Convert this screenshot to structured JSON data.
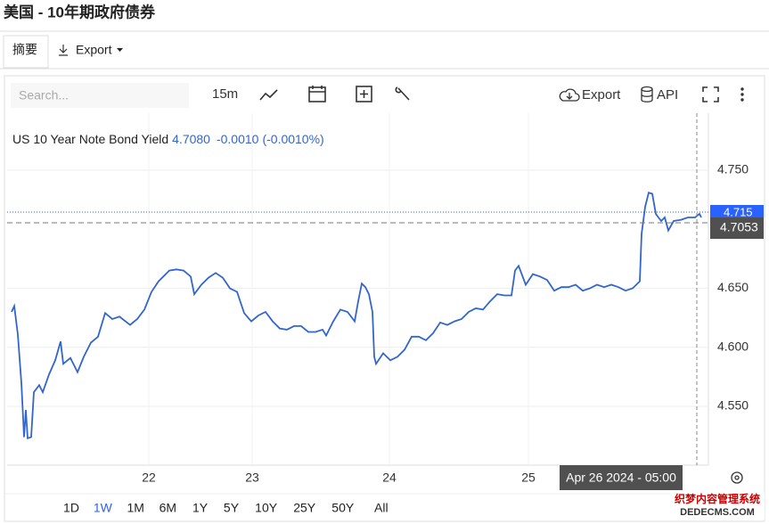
{
  "header": {
    "title": "美国 - 10年期政府债券"
  },
  "tabs": [
    "摘要",
    "Export"
  ],
  "toolbar": {
    "search": "Search...",
    "interval": "15m",
    "export": "Export",
    "api": "API"
  },
  "legend": {
    "value": "4.7080",
    "change": "-0.0010",
    "percent": "(-0.0010%)"
  },
  "overlay": {
    "last_price": "4.715",
    "crosshair_price": "4.7053",
    "crosshair_time": "Apr 26 2024 - 05:00"
  },
  "ranges": [
    "1D",
    "1W",
    "1M",
    "6M",
    "1Y",
    "5Y",
    "10Y",
    "25Y",
    "50Y",
    "All"
  ],
  "active_range": "1W",
  "watermark": [
    "织梦内容管理系统",
    "DEDECMS.COM"
  ],
  "chart_data": {
    "type": "line",
    "series": [
      {
        "name": "US 10 Year Note Bond Yield",
        "color": "#3366cc",
        "x": [
          5,
          8,
          12,
          16,
          19,
          21,
          23,
          27,
          30,
          36,
          40,
          47,
          54,
          60,
          63,
          71,
          79,
          86,
          94,
          102,
          110,
          118,
          126,
          138,
          146,
          154,
          162,
          170,
          182,
          190,
          198,
          206,
          210,
          218,
          226,
          234,
          242,
          250,
          258,
          266,
          274,
          282,
          290,
          298,
          306,
          314,
          322,
          330,
          338,
          346,
          354,
          358,
          366,
          374,
          382,
          390,
          394,
          398,
          402,
          406,
          410,
          412,
          414,
          422,
          430,
          438,
          446,
          454,
          462,
          470,
          478,
          486,
          494,
          502,
          510,
          518,
          526,
          534,
          542,
          550,
          558,
          566,
          570,
          574,
          582,
          590,
          598,
          606,
          614,
          622,
          630,
          638,
          646,
          654,
          662,
          670,
          678,
          686,
          694,
          702,
          710,
          712,
          716,
          720,
          724,
          728,
          734,
          738,
          742,
          748,
          756,
          764,
          772,
          777,
          779
        ],
        "values": [
          4.63,
          4.635,
          4.611,
          4.57,
          4.524,
          4.547,
          4.523,
          4.524,
          4.562,
          4.568,
          4.562,
          4.577,
          4.589,
          4.605,
          4.586,
          4.591,
          4.579,
          4.592,
          4.604,
          4.609,
          4.629,
          4.624,
          4.626,
          4.619,
          4.624,
          4.632,
          4.647,
          4.656,
          4.665,
          4.666,
          4.665,
          4.66,
          4.645,
          4.653,
          4.659,
          4.663,
          4.659,
          4.65,
          4.647,
          4.629,
          4.622,
          4.627,
          4.63,
          4.622,
          4.616,
          4.615,
          4.618,
          4.618,
          4.613,
          4.613,
          4.615,
          4.61,
          4.622,
          4.632,
          4.63,
          4.622,
          4.639,
          4.654,
          4.651,
          4.645,
          4.63,
          4.592,
          4.586,
          4.595,
          4.589,
          4.592,
          4.598,
          4.609,
          4.609,
          4.606,
          4.612,
          4.621,
          4.619,
          4.622,
          4.624,
          4.63,
          4.633,
          4.632,
          4.639,
          4.645,
          4.644,
          4.644,
          4.665,
          4.669,
          4.653,
          4.662,
          4.66,
          4.657,
          4.648,
          4.651,
          4.651,
          4.653,
          4.648,
          4.65,
          4.653,
          4.651,
          4.653,
          4.651,
          4.648,
          4.65,
          4.656,
          4.696,
          4.719,
          4.731,
          4.73,
          4.713,
          4.707,
          4.71,
          4.699,
          4.707,
          4.708,
          4.71,
          4.71,
          4.713,
          4.71
        ]
      }
    ],
    "xlim": [
      0,
      787
    ],
    "xticks": [
      {
        "value": 159,
        "label": "22"
      },
      {
        "value": 275,
        "label": "23"
      },
      {
        "value": 429,
        "label": "24"
      },
      {
        "value": 585,
        "label": "25"
      }
    ],
    "ylim": [
      4.5002,
      4.7983
    ],
    "yticks": [
      {
        "value": 4.55,
        "label": "4.550"
      },
      {
        "value": 4.6,
        "label": "4.600"
      },
      {
        "value": 4.65,
        "label": "4.650"
      },
      {
        "value": 4.75,
        "label": "4.750"
      }
    ],
    "grid": true
  }
}
